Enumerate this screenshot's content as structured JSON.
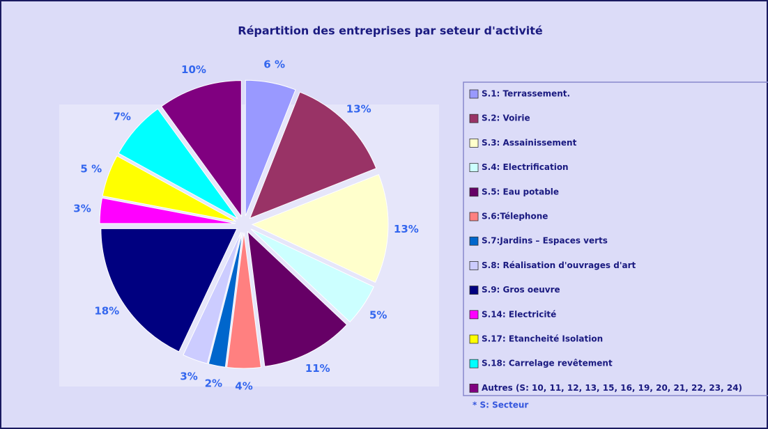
{
  "chart_data": {
    "type": "pie",
    "title": "Répartition des entreprises par seteur d'activité",
    "categories": [
      "S.1: Terrassement.",
      "S.2: Voirie",
      "S.3: Assainissement",
      "S.4: Electrification",
      "S.5: Eau potable",
      "S.6:Télephone",
      "S.7:Jardins – Espaces verts",
      "S.8: Réalisation d'ouvrages d'art",
      "S.9: Gros oeuvre",
      "S.14: Electricité",
      "S.17: Etancheité Isolation",
      "S.18: Carrelage revêtement",
      "Autres (S: 10, 11, 12, 13, 15, 16, 19, 20, 21, 22, 23, 24)"
    ],
    "values": [
      6,
      13,
      13,
      5,
      11,
      4,
      2,
      3,
      18,
      3,
      5,
      7,
      10
    ],
    "value_labels": [
      "6 %",
      "13%",
      "13%",
      "5%",
      "11%",
      "4%",
      "2%",
      "3%",
      "18%",
      "3%",
      "5 %",
      "7%",
      "10%"
    ],
    "colors": [
      "#9999ff",
      "#993366",
      "#ffffcc",
      "#ccffff",
      "#660066",
      "#ff8080",
      "#0066cc",
      "#ccccff",
      "#000080",
      "#ff00ff",
      "#ffff00",
      "#00ffff",
      "#800080"
    ],
    "footnote": "*   S: Secteur"
  }
}
